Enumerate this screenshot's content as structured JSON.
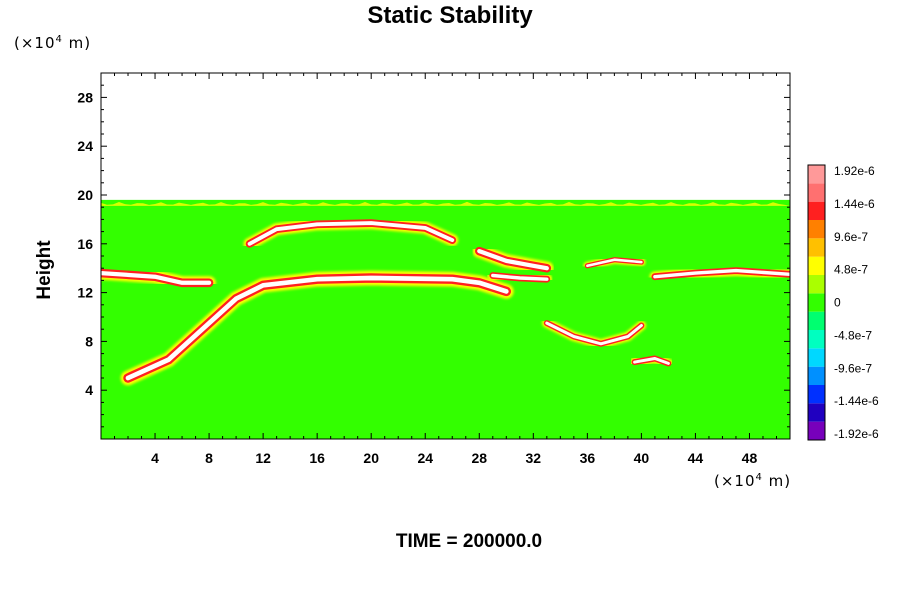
{
  "title": "Static Stability",
  "y_unit": {
    "prefix": "(×10",
    "exp": "4",
    "suffix": " m)"
  },
  "x_unit": {
    "prefix": "(×10",
    "exp": "4",
    "suffix": " m)"
  },
  "time_label": "TIME = 200000.0",
  "colors": {
    "background_field": "#33ff00",
    "strong_positive": "#ff2020",
    "peak": "#ffffff",
    "palette": [
      "#7700bb",
      "#2000c0",
      "#0030ff",
      "#0090ff",
      "#00d8ff",
      "#00ffc0",
      "#00ff70",
      "#33ff00",
      "#aaff00",
      "#ffff00",
      "#ffc000",
      "#ff8000",
      "#ff2020",
      "#ff7070",
      "#ff9999"
    ]
  },
  "chart_data": {
    "type": "heatmap",
    "title": "Static Stability",
    "ylabel": "Height",
    "xlabel": "",
    "xlim": [
      0,
      51
    ],
    "ylim": [
      0,
      30
    ],
    "x_ticks": [
      "4",
      "8",
      "12",
      "16",
      "20",
      "24",
      "28",
      "32",
      "36",
      "40",
      "44",
      "48"
    ],
    "x_tick_values": [
      4,
      8,
      12,
      16,
      20,
      24,
      28,
      32,
      36,
      40,
      44,
      48
    ],
    "y_ticks": [
      "4",
      "8",
      "12",
      "16",
      "20",
      "24",
      "28"
    ],
    "y_tick_values": [
      4,
      8,
      12,
      16,
      20,
      24,
      28
    ],
    "field_top": 19.6,
    "colorbar": {
      "labels": [
        "1.92e-6",
        "1.44e-6",
        "9.6e-7",
        "4.8e-7",
        "0",
        "-4.8e-7",
        "-9.6e-7",
        "-1.44e-6",
        "-1.92e-6"
      ],
      "values": [
        1.92e-06,
        1.44e-06,
        9.6e-07,
        4.8e-07,
        0,
        -4.8e-07,
        -9.6e-07,
        -1.44e-06,
        -1.92e-06
      ],
      "range": [
        -1.92e-06,
        1.92e-06
      ]
    },
    "features": [
      {
        "name": "left-layer",
        "points": [
          [
            0,
            13.6
          ],
          [
            4,
            13.3
          ],
          [
            6,
            12.8
          ],
          [
            8,
            12.8
          ]
        ],
        "w": 0.5
      },
      {
        "name": "main-arc",
        "points": [
          [
            2,
            5
          ],
          [
            5,
            6.5
          ],
          [
            8,
            9.5
          ],
          [
            10,
            11.5
          ],
          [
            12,
            12.6
          ],
          [
            16,
            13.1
          ],
          [
            20,
            13.2
          ],
          [
            26,
            13.1
          ],
          [
            28,
            12.8
          ],
          [
            30,
            12.1
          ]
        ],
        "w": 0.55
      },
      {
        "name": "upper-arc",
        "points": [
          [
            11,
            16
          ],
          [
            13,
            17.2
          ],
          [
            16,
            17.6
          ],
          [
            20,
            17.7
          ],
          [
            24,
            17.3
          ],
          [
            26,
            16.3
          ]
        ],
        "w": 0.45
      },
      {
        "name": "right-layer",
        "points": [
          [
            41,
            13.3
          ],
          [
            44,
            13.6
          ],
          [
            47,
            13.8
          ],
          [
            51,
            13.5
          ]
        ],
        "w": 0.4
      },
      {
        "name": "diag-band",
        "points": [
          [
            28,
            15.4
          ],
          [
            30,
            14.6
          ],
          [
            32,
            14.2
          ],
          [
            33,
            14
          ]
        ],
        "w": 0.5
      },
      {
        "name": "lobe-a",
        "points": [
          [
            29,
            13.4
          ],
          [
            31,
            13.2
          ],
          [
            33,
            13.1
          ]
        ],
        "w": 0.4
      },
      {
        "name": "lobe-b",
        "points": [
          [
            33,
            9.5
          ],
          [
            35,
            8.4
          ],
          [
            37,
            7.8
          ],
          [
            39,
            8.4
          ],
          [
            40,
            9.3
          ]
        ],
        "w": 0.35
      },
      {
        "name": "lobe-c",
        "points": [
          [
            39.5,
            6.3
          ],
          [
            41,
            6.6
          ],
          [
            42,
            6.2
          ]
        ],
        "w": 0.35
      },
      {
        "name": "upper-right",
        "points": [
          [
            36,
            14.2
          ],
          [
            38,
            14.7
          ],
          [
            40,
            14.5
          ]
        ],
        "w": 0.3
      }
    ]
  }
}
